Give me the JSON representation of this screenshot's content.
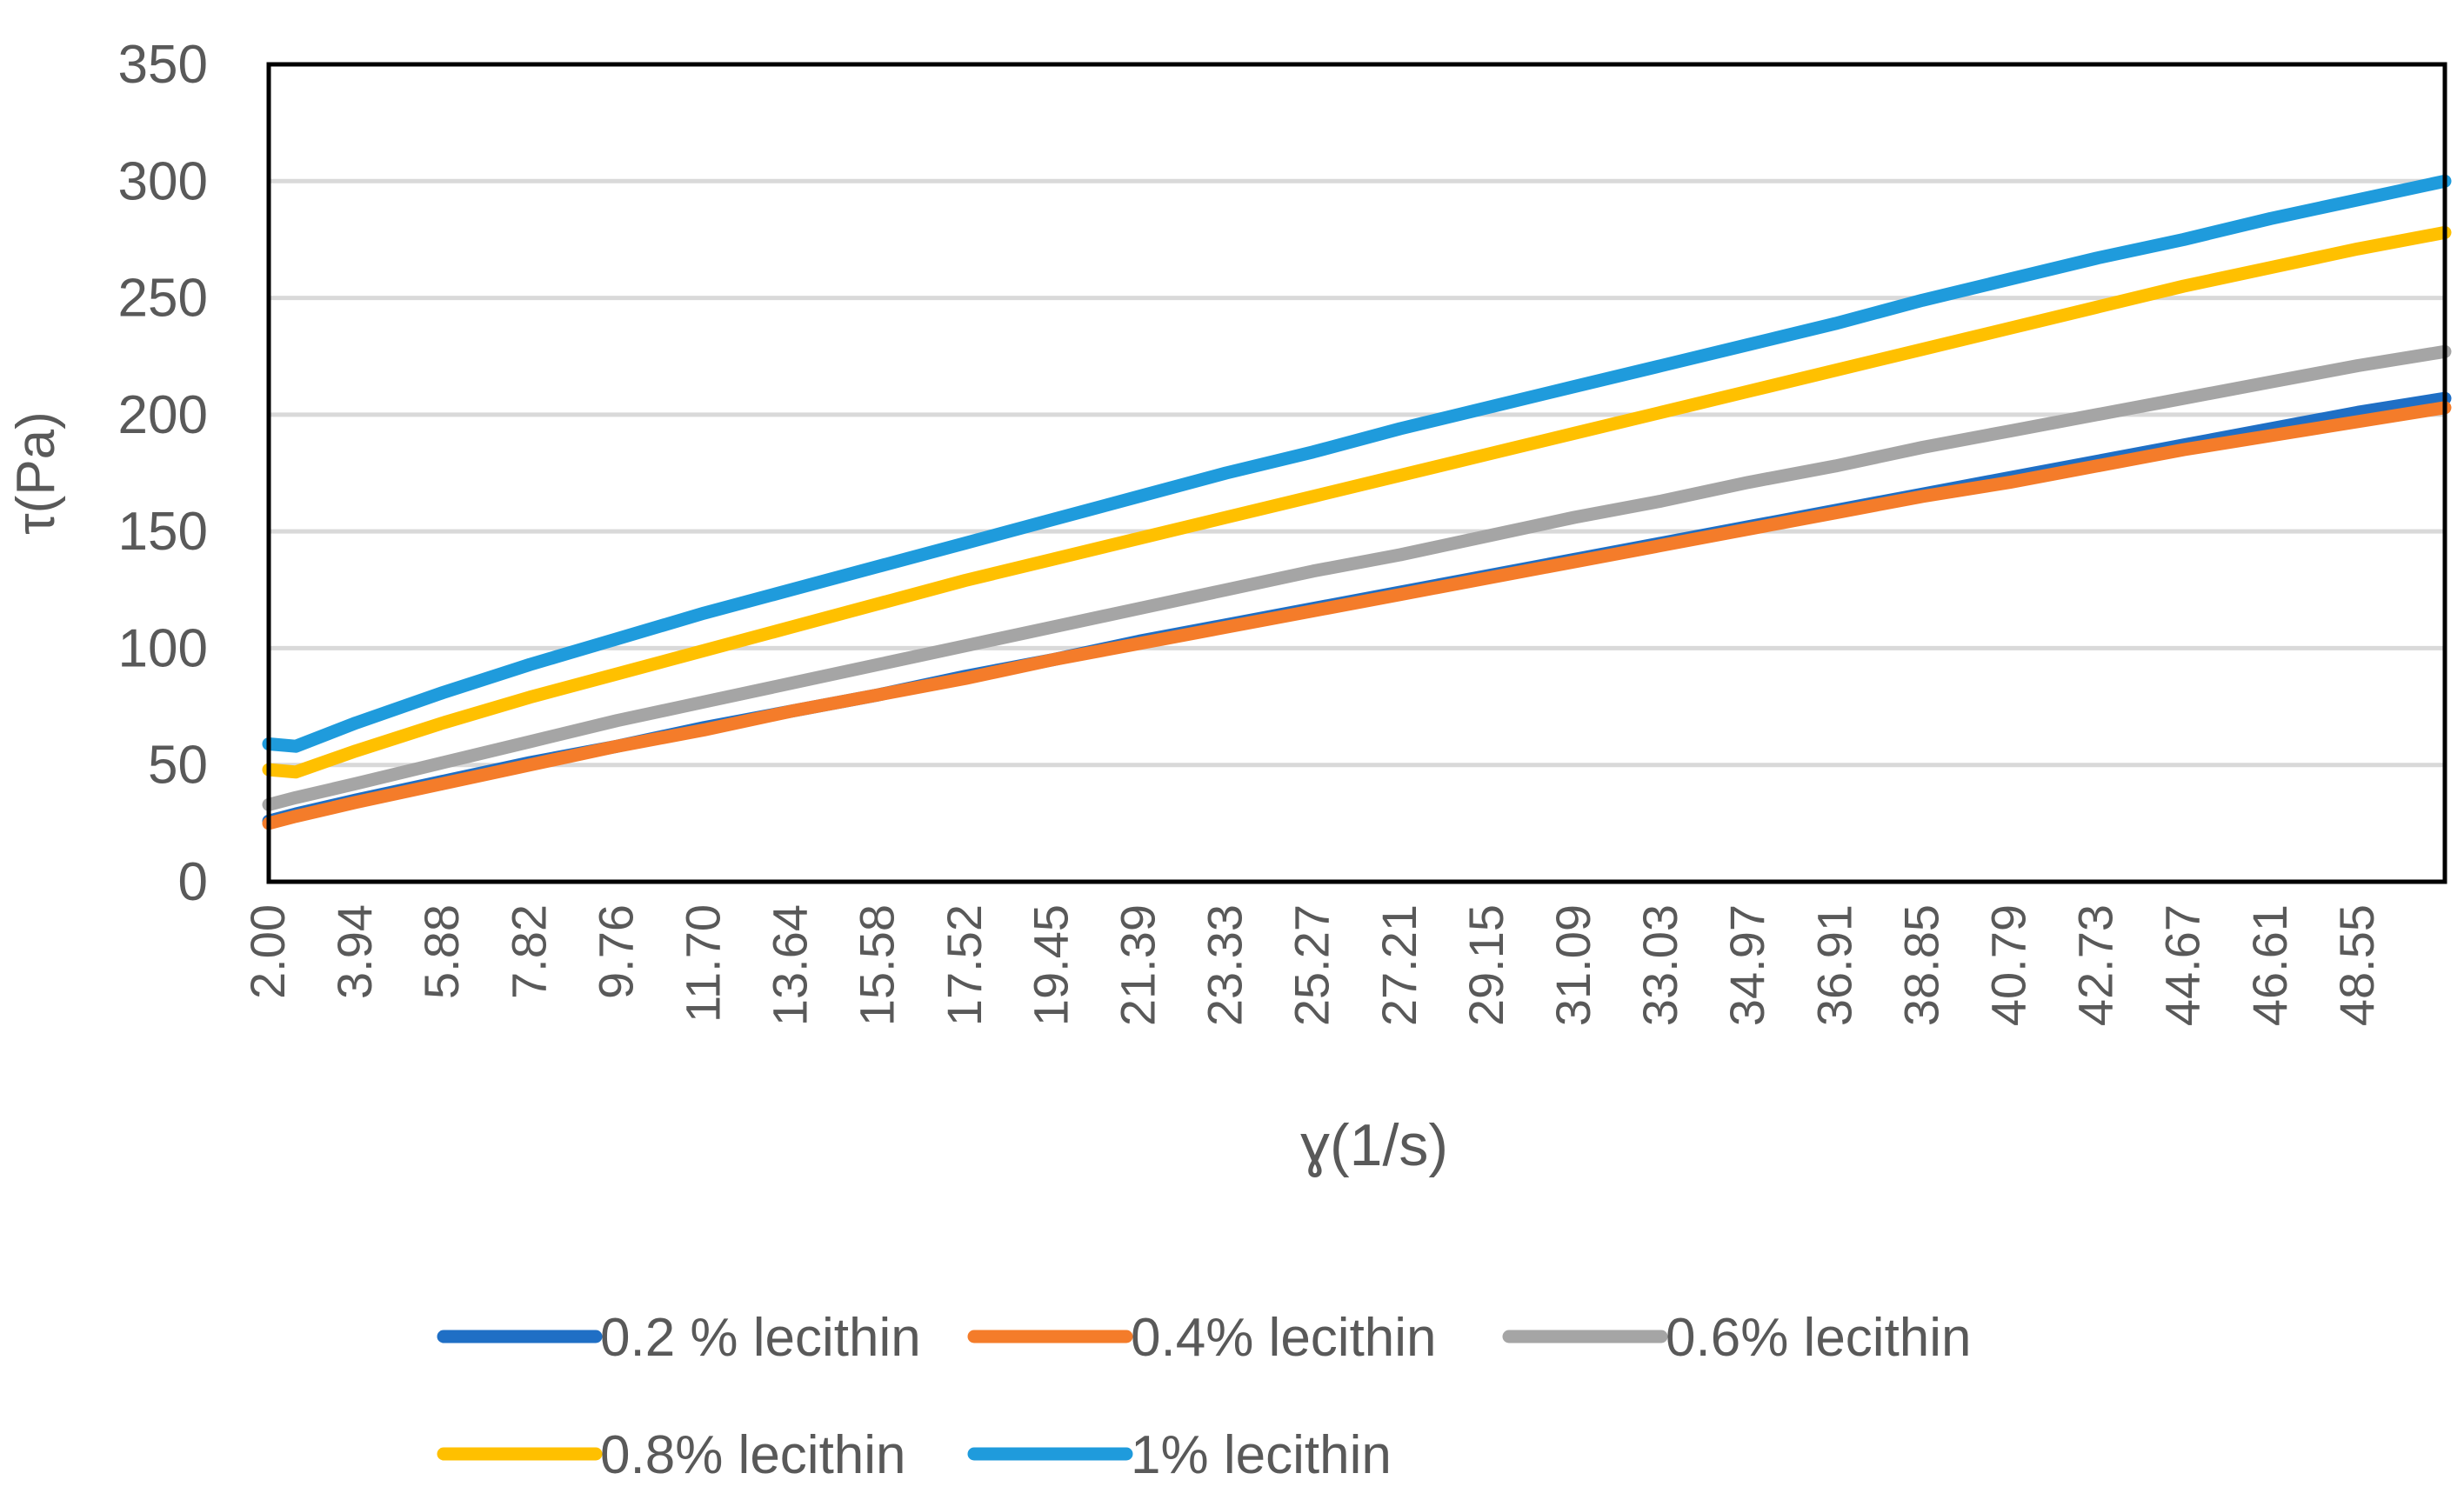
{
  "chart_data": {
    "type": "line",
    "title": "",
    "xlabel": "ɣ(1/s)",
    "ylabel": "τ(Pa)",
    "xlim": [
      2.0,
      50.49
    ],
    "ylim": [
      0,
      350
    ],
    "ytick_step": 50,
    "x_ticks": [
      "2.00",
      "3.94",
      "5.88",
      "7.82",
      "9.76",
      "11.70",
      "13.64",
      "15.58",
      "17.52",
      "19.45",
      "21.39",
      "23.33",
      "25.27",
      "27.21",
      "29.15",
      "31.09",
      "33.03",
      "34.97",
      "36.91",
      "38.85",
      "40.79",
      "42.73",
      "44.67",
      "46.61",
      "48.55"
    ],
    "y_ticks": [
      "0",
      "50",
      "100",
      "150",
      "200",
      "250",
      "300",
      "350"
    ],
    "grid": true,
    "legend_position": "bottom",
    "series": [
      {
        "name": "0.2 % lecithin",
        "color": "#1f6fc5",
        "x": [
          2.0,
          2.6,
          3.94,
          5.88,
          7.82,
          9.76,
          11.7,
          13.64,
          15.58,
          17.52,
          19.45,
          21.39,
          23.33,
          25.27,
          27.21,
          29.15,
          31.09,
          33.03,
          34.97,
          36.91,
          38.85,
          40.79,
          42.73,
          44.67,
          46.61,
          48.55,
          50.49
        ],
        "y": [
          26,
          29,
          35,
          43,
          51,
          58,
          66,
          73,
          80,
          88,
          95,
          103,
          110,
          117,
          124,
          131,
          138,
          145,
          152,
          159,
          166,
          173,
          180,
          187,
          194,
          201,
          207
        ]
      },
      {
        "name": "0.4% lecithin",
        "color": "#f47c2a",
        "x": [
          2.0,
          2.6,
          3.94,
          5.88,
          7.82,
          9.76,
          11.7,
          13.64,
          15.58,
          17.52,
          19.45,
          21.39,
          23.33,
          25.27,
          27.21,
          29.15,
          31.09,
          33.03,
          34.97,
          36.91,
          38.85,
          40.79,
          42.73,
          44.67,
          46.61,
          48.55,
          50.49
        ],
        "y": [
          25,
          28,
          34,
          42,
          50,
          58,
          65,
          73,
          80,
          87,
          95,
          102,
          109,
          116,
          123,
          130,
          137,
          144,
          151,
          158,
          165,
          171,
          178,
          185,
          191,
          197,
          203
        ]
      },
      {
        "name": "0.6% lecithin",
        "color": "#a5a5a5",
        "x": [
          2.0,
          2.6,
          3.94,
          5.88,
          7.82,
          9.76,
          11.7,
          13.64,
          15.58,
          17.52,
          19.45,
          21.39,
          23.33,
          25.27,
          27.21,
          29.15,
          31.09,
          33.03,
          34.97,
          36.91,
          38.85,
          40.79,
          42.73,
          44.67,
          46.61,
          48.55,
          50.49
        ],
        "y": [
          33,
          36,
          42,
          51,
          60,
          69,
          77,
          85,
          93,
          101,
          109,
          117,
          125,
          133,
          140,
          148,
          156,
          163,
          171,
          178,
          186,
          193,
          200,
          207,
          214,
          221,
          227
        ]
      },
      {
        "name": "0.8% lecithin",
        "color": "#ffc000",
        "x": [
          2.0,
          2.6,
          3.94,
          5.88,
          7.82,
          9.76,
          11.7,
          13.64,
          15.58,
          17.52,
          19.45,
          21.39,
          23.33,
          25.27,
          27.21,
          29.15,
          31.09,
          33.03,
          34.97,
          36.91,
          38.85,
          40.79,
          42.73,
          44.67,
          46.61,
          48.55,
          50.49
        ],
        "y": [
          48,
          47,
          56,
          68,
          79,
          89,
          99,
          109,
          119,
          129,
          138,
          147,
          156,
          165,
          174,
          183,
          192,
          201,
          210,
          219,
          228,
          237,
          246,
          255,
          263,
          271,
          278
        ]
      },
      {
        "name": "1% lecithin",
        "color": "#1f9bdc",
        "x": [
          2.0,
          2.6,
          3.94,
          5.88,
          7.82,
          9.76,
          11.7,
          13.64,
          15.58,
          17.52,
          19.45,
          21.39,
          23.33,
          25.27,
          27.21,
          29.15,
          31.09,
          33.03,
          34.97,
          36.91,
          38.85,
          40.79,
          42.73,
          44.67,
          46.61,
          48.55,
          50.49
        ],
        "y": [
          59,
          58,
          68,
          81,
          93,
          104,
          115,
          125,
          135,
          145,
          155,
          165,
          175,
          184,
          194,
          203,
          212,
          221,
          230,
          239,
          249,
          258,
          267,
          275,
          284,
          292,
          300
        ]
      }
    ]
  }
}
